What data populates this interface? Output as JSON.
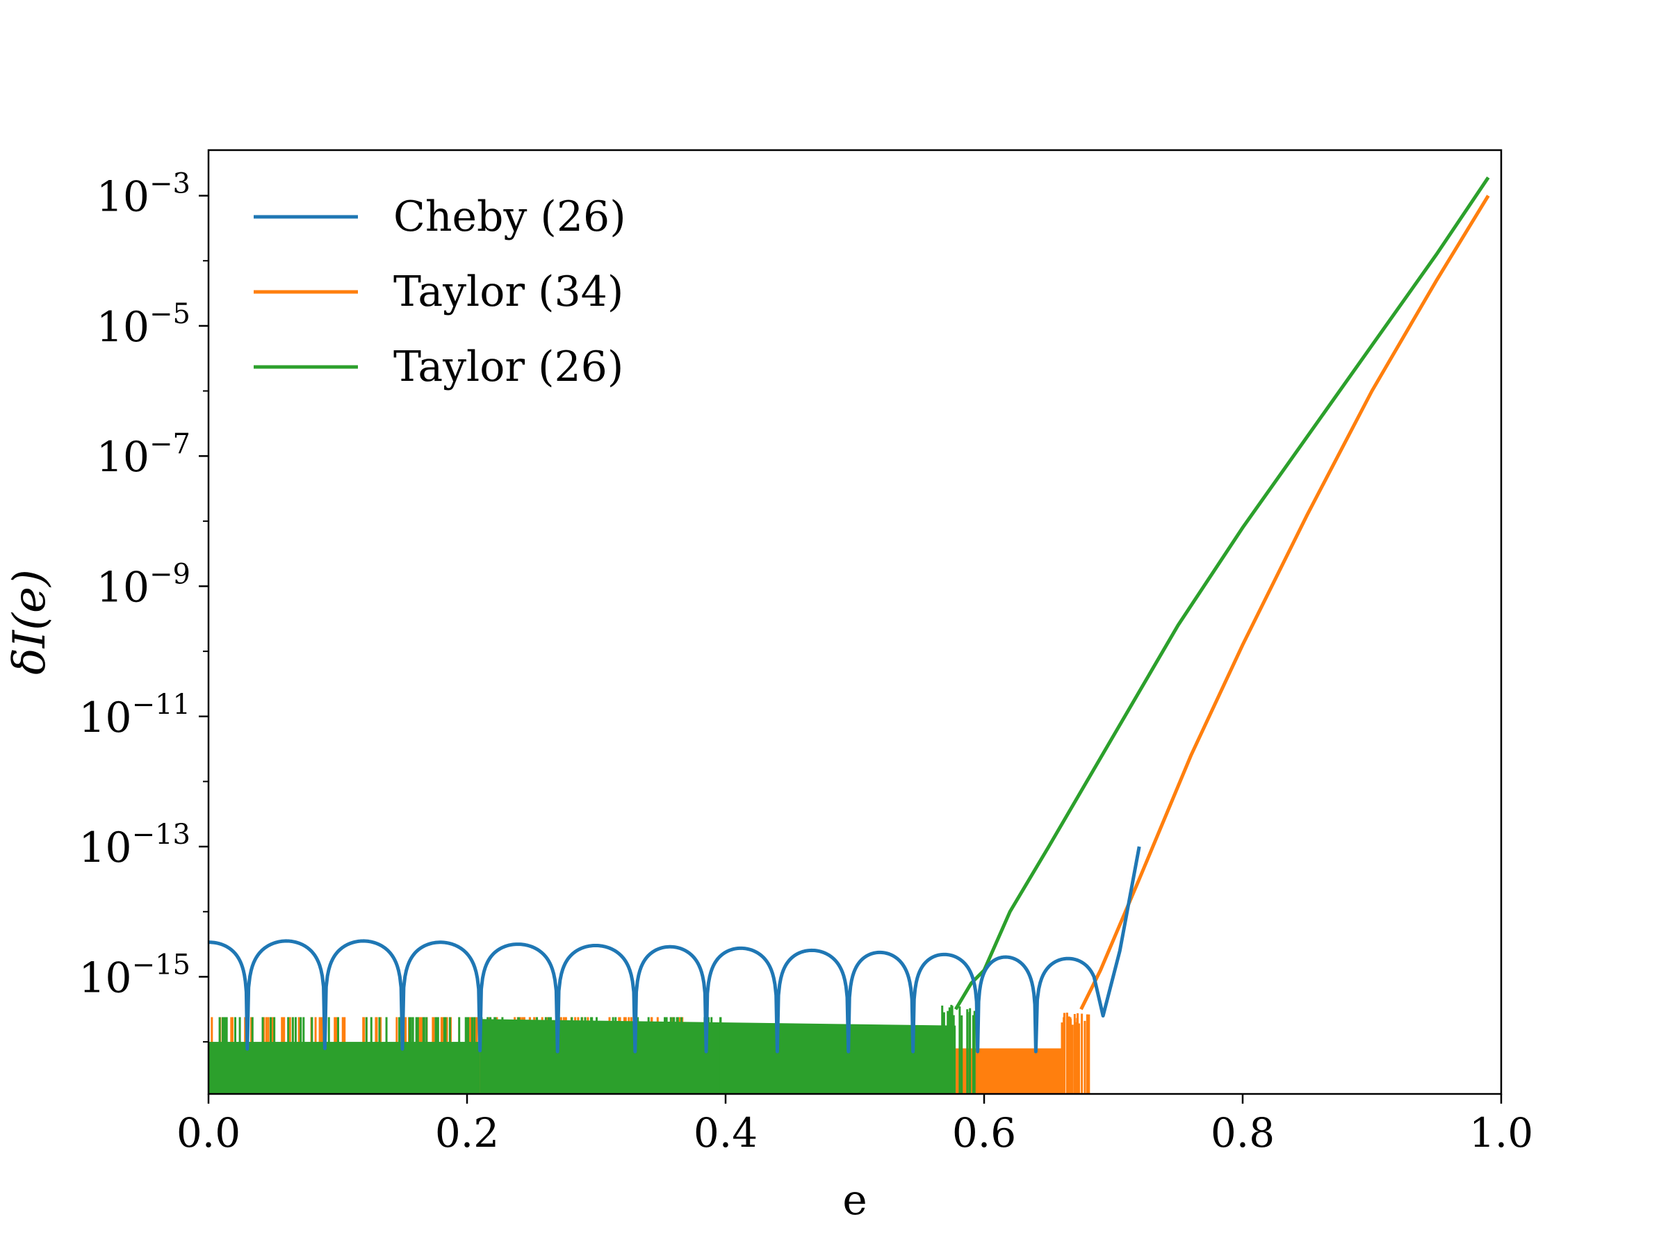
{
  "chart_data": {
    "type": "line",
    "title": "",
    "xlabel": "e",
    "ylabel": "δI(e)",
    "xlim": [
      0.0,
      1.0
    ],
    "ylim_log10": [
      -16.8,
      -2.3
    ],
    "y_scale": "log",
    "grid": false,
    "legend_position": "top-left",
    "x_ticks": [
      "0.0",
      "0.2",
      "0.4",
      "0.6",
      "0.8",
      "1.0"
    ],
    "x_tick_values": [
      0.0,
      0.2,
      0.4,
      0.6,
      0.8,
      1.0
    ],
    "y_ticks": [
      {
        "base": "10",
        "exp": "−3",
        "value": -3
      },
      {
        "base": "10",
        "exp": "−5",
        "value": -5
      },
      {
        "base": "10",
        "exp": "−7",
        "value": -7
      },
      {
        "base": "10",
        "exp": "−9",
        "value": -9
      },
      {
        "base": "10",
        "exp": "−11",
        "value": -11
      },
      {
        "base": "10",
        "exp": "−13",
        "value": -13
      },
      {
        "base": "10",
        "exp": "−15",
        "value": -15
      }
    ],
    "series": [
      {
        "name": "Cheby (26)",
        "color": "#1f77b4",
        "description_points_log10": [
          [
            0.0,
            -14.47
          ],
          [
            0.06,
            -14.45
          ],
          [
            0.12,
            -14.45
          ],
          [
            0.18,
            -14.47
          ],
          [
            0.24,
            -14.5
          ],
          [
            0.3,
            -14.52
          ],
          [
            0.36,
            -14.54
          ],
          [
            0.41,
            -14.56
          ],
          [
            0.46,
            -14.59
          ],
          [
            0.51,
            -14.62
          ],
          [
            0.56,
            -14.65
          ],
          [
            0.6,
            -14.68
          ],
          [
            0.64,
            -14.72
          ],
          [
            0.69,
            -15.6
          ],
          [
            0.72,
            -13.0
          ]
        ],
        "nulls_x": [
          0.03,
          0.09,
          0.15,
          0.21,
          0.27,
          0.33,
          0.385,
          0.44,
          0.495,
          0.545,
          0.595,
          0.64
        ]
      },
      {
        "name": "Taylor (34)",
        "color": "#ff7f0e",
        "x": [
          0.0,
          0.578,
          0.578,
          0.662,
          0.662,
          0.675,
          0.69,
          0.72,
          0.76,
          0.8,
          0.85,
          0.9,
          0.95,
          0.99
        ],
        "y_log10": [
          -16.1,
          -16.1,
          -16.2,
          -16.25,
          -15.9,
          -15.5,
          -14.9,
          -13.5,
          -11.6,
          -9.9,
          -7.9,
          -6.0,
          -4.3,
          -3.0
        ]
      },
      {
        "name": "Taylor (26)",
        "color": "#2ca02c",
        "x": [
          0.0,
          0.21,
          0.21,
          0.578,
          0.578,
          0.59,
          0.6,
          0.62,
          0.65,
          0.7,
          0.75,
          0.8,
          0.85,
          0.9,
          0.95,
          0.99
        ],
        "y_log10": [
          -16.0,
          -16.0,
          -15.65,
          -15.75,
          -15.5,
          -15.1,
          -14.9,
          -14.0,
          -13.0,
          -11.3,
          -9.6,
          -8.1,
          -6.7,
          -5.3,
          -3.9,
          -2.72
        ]
      }
    ]
  }
}
